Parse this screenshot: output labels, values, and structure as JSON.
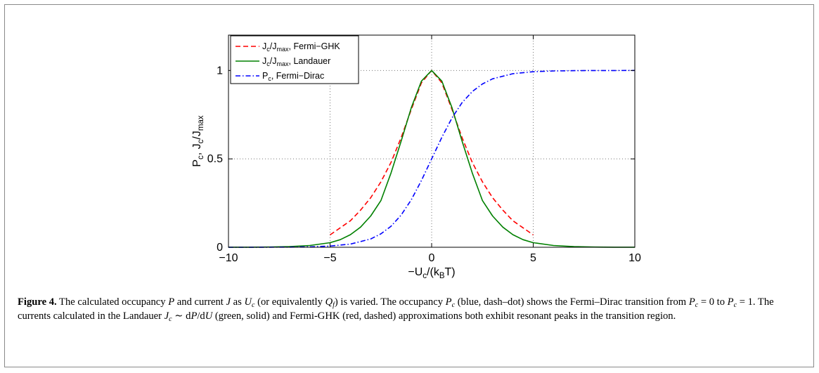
{
  "chart_data": {
    "type": "line",
    "xlabel_parts": [
      "−U",
      "c",
      "/(k",
      "B",
      "T)"
    ],
    "ylabel_parts": [
      "P",
      "c",
      ", J",
      "c",
      "/J",
      "max"
    ],
    "xlim": [
      -10,
      10
    ],
    "ylim": [
      0,
      1.2
    ],
    "x_ticks": [
      -10,
      -5,
      0,
      5,
      10
    ],
    "x_tick_labels": [
      "−10",
      "−5",
      "0",
      "5",
      "10"
    ],
    "y_ticks": [
      0,
      0.5,
      1
    ],
    "y_tick_labels": [
      "0",
      "0.5",
      "1"
    ],
    "grid": "dotted",
    "legend_position": "top-left",
    "series": [
      {
        "key": "fermi_ghk",
        "legend_parts": [
          "J",
          "c",
          "/J",
          "max",
          ", Fermi−GHK"
        ],
        "color": "#ff0000",
        "style": "dashed",
        "x": [
          -5,
          -4.5,
          -4,
          -3.5,
          -3,
          -2.5,
          -2,
          -1.5,
          -1,
          -0.5,
          0,
          0.5,
          1,
          1.5,
          2,
          2.5,
          3,
          3.5,
          4,
          4.5,
          5
        ],
        "y": [
          0.07,
          0.11,
          0.15,
          0.21,
          0.28,
          0.37,
          0.48,
          0.62,
          0.78,
          0.93,
          1.0,
          0.93,
          0.78,
          0.62,
          0.48,
          0.37,
          0.28,
          0.21,
          0.15,
          0.11,
          0.07
        ]
      },
      {
        "key": "landauer",
        "legend_parts": [
          "J",
          "c",
          "/J",
          "max",
          ", Landauer"
        ],
        "color": "#008000",
        "style": "solid",
        "x": [
          -10,
          -9,
          -8,
          -7,
          -6,
          -5,
          -4.5,
          -4,
          -3.5,
          -3,
          -2.5,
          -2,
          -1.5,
          -1,
          -0.5,
          0,
          0.5,
          1,
          1.5,
          2,
          2.5,
          3,
          3.5,
          4,
          4.5,
          5,
          6,
          7,
          8,
          9,
          10
        ],
        "y": [
          0.0002,
          0.0005,
          0.0013,
          0.0036,
          0.0098,
          0.026,
          0.043,
          0.071,
          0.114,
          0.177,
          0.264,
          0.42,
          0.6,
          0.79,
          0.94,
          1.0,
          0.94,
          0.79,
          0.6,
          0.42,
          0.264,
          0.177,
          0.114,
          0.071,
          0.043,
          0.026,
          0.0098,
          0.0036,
          0.0013,
          0.0005,
          0.0002
        ]
      },
      {
        "key": "fermi_dirac",
        "legend_parts": [
          "P",
          "c",
          ", Fermi−Dirac"
        ],
        "color": "#0000ff",
        "style": "dashdot",
        "x": [
          -10,
          -9,
          -8,
          -7,
          -6,
          -5,
          -4,
          -3,
          -2.5,
          -2,
          -1.5,
          -1,
          -0.5,
          0,
          0.5,
          1,
          1.5,
          2,
          2.5,
          3,
          4,
          5,
          6,
          7,
          8,
          9,
          10
        ],
        "y": [
          5e-05,
          0.0001,
          0.0003,
          0.0009,
          0.0025,
          0.0067,
          0.018,
          0.047,
          0.076,
          0.119,
          0.182,
          0.269,
          0.378,
          0.5,
          0.622,
          0.731,
          0.818,
          0.881,
          0.924,
          0.953,
          0.982,
          0.993,
          0.9975,
          0.9991,
          0.9997,
          0.9999,
          1.0
        ]
      }
    ]
  },
  "caption": {
    "label": "Figure 4.",
    "parts": [
      {
        "t": " The calculated occupancy "
      },
      {
        "t": "P",
        "i": true
      },
      {
        "t": " and current "
      },
      {
        "t": "J",
        "i": true
      },
      {
        "t": " as "
      },
      {
        "t": "U",
        "i": true
      },
      {
        "t": "c",
        "sub": true
      },
      {
        "t": " (or equivalently "
      },
      {
        "t": "Q",
        "i": true
      },
      {
        "t": "f",
        "sub": true
      },
      {
        "t": ") is varied. The occupancy "
      },
      {
        "t": "P",
        "i": true
      },
      {
        "t": "c",
        "sub": true
      },
      {
        "t": " (blue, dash–dot) shows the Fermi–Dirac transition from "
      },
      {
        "t": "P",
        "i": true
      },
      {
        "t": "c",
        "sub": true
      },
      {
        "t": " = 0 to "
      },
      {
        "t": "P",
        "i": true
      },
      {
        "t": "c",
        "sub": true
      },
      {
        "t": " = 1. The currents calculated in the Landauer "
      },
      {
        "t": "J",
        "i": true
      },
      {
        "t": "c",
        "sub": true
      },
      {
        "t": " ∼ d"
      },
      {
        "t": "P",
        "i": true
      },
      {
        "t": "/d"
      },
      {
        "t": "U",
        "i": true
      },
      {
        "t": " (green, solid) and Fermi-GHK (red, dashed) approximations both exhibit resonant peaks in the transition region."
      }
    ]
  }
}
